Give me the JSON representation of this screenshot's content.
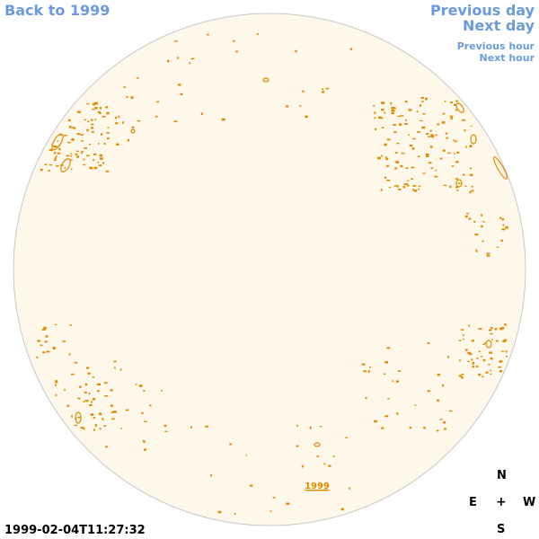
{
  "nav": {
    "back_label": "Back to 1999",
    "previous_day_label": "Previous day",
    "next_day_label": "Next day",
    "previous_hour_label": "Previous hour",
    "next_hour_label": "Next hour"
  },
  "sky": {
    "year_label": "1999",
    "disk_color": "#fdf8ea",
    "contour_color": "#e08a00",
    "link_color": "#6b9bde"
  },
  "compass": {
    "north": "N",
    "east": "E",
    "center": "+",
    "west": "W",
    "south": "S"
  },
  "timestamp": "1999-02-04T11:27:32"
}
